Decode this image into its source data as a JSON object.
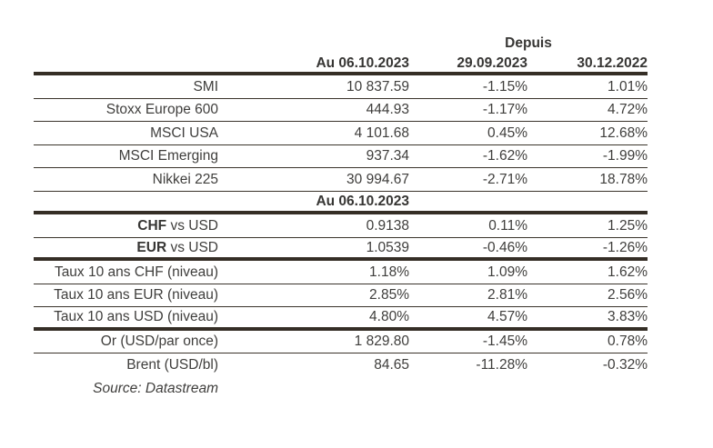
{
  "colors": {
    "background": "#ffffff",
    "text": "#3f3e3c",
    "rule": "#352e26"
  },
  "table": {
    "depuis_label": "Depuis",
    "col_headers": [
      "Au 06.10.2023",
      "29.09.2023",
      "30.12.2022"
    ],
    "indices": [
      {
        "label": "SMI",
        "level": "10 837.59",
        "since_week": "-1.15%",
        "since_year": "1.01%"
      },
      {
        "label": "Stoxx Europe 600",
        "level": "444.93",
        "since_week": "-1.17%",
        "since_year": "4.72%"
      },
      {
        "label": "MSCI USA",
        "level": "4 101.68",
        "since_week": "0.45%",
        "since_year": "12.68%"
      },
      {
        "label": "MSCI Emerging",
        "level": "937.34",
        "since_week": "-1.62%",
        "since_year": "-1.99%"
      },
      {
        "label": "Nikkei 225",
        "level": "30 994.67",
        "since_week": "-2.71%",
        "since_year": "18.78%"
      }
    ],
    "subheader": "Au 06.10.2023",
    "currencies": [
      {
        "label_bold": "CHF",
        "label_rest": " vs USD",
        "level": "0.9138",
        "since_week": "0.11%",
        "since_year": "1.25%"
      },
      {
        "label_bold": "EUR",
        "label_rest": " vs USD",
        "level": "1.0539",
        "since_week": "-0.46%",
        "since_year": "-1.26%"
      }
    ],
    "rates": [
      {
        "label": "Taux 10 ans CHF (niveau)",
        "level": "1.18%",
        "since_week": "1.09%",
        "since_year": "1.62%"
      },
      {
        "label": "Taux 10 ans EUR (niveau)",
        "level": "2.85%",
        "since_week": "2.81%",
        "since_year": "2.56%"
      },
      {
        "label": "Taux 10 ans USD (niveau)",
        "level": "4.80%",
        "since_week": "4.57%",
        "since_year": "3.83%"
      }
    ],
    "commodities": [
      {
        "label": "Or (USD/par once)",
        "level": "1 829.80",
        "since_week": "-1.45%",
        "since_year": "0.78%"
      },
      {
        "label": "Brent (USD/bl)",
        "level": "84.65",
        "since_week": "-11.28%",
        "since_year": "-0.32%"
      }
    ]
  },
  "footer": {
    "source": "Source: Datastream"
  }
}
